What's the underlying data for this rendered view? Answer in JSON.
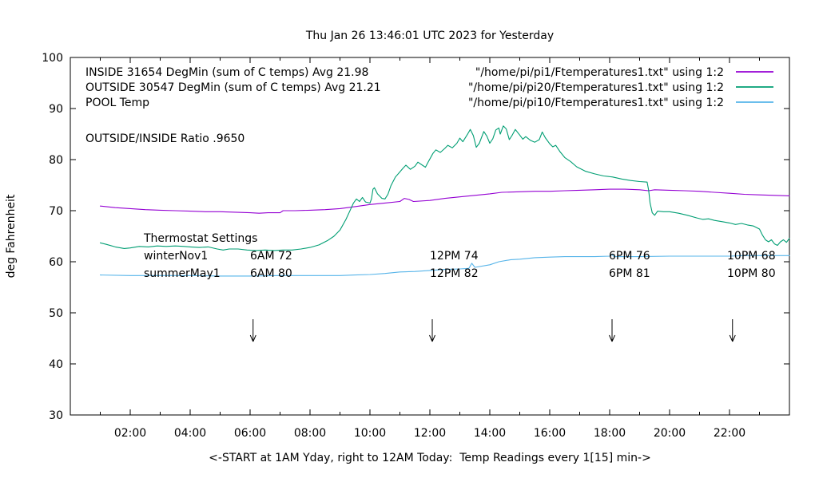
{
  "chart_data": {
    "type": "line",
    "title": "Thu Jan 26 13:46:01 UTC 2023 for Yesterday",
    "xlabel": "<-START at 1AM Yday, right to 12AM Today:  Temp Readings every 1[15] min->",
    "ylabel": "deg Fahrenheit",
    "xlim": [
      0,
      24
    ],
    "ylim": [
      30,
      100
    ],
    "grid": false,
    "legend_position": "inside-top-right-of-plot",
    "x_ticks": [
      {
        "h": 2,
        "label": "02:00"
      },
      {
        "h": 4,
        "label": "04:00"
      },
      {
        "h": 6,
        "label": "06:00"
      },
      {
        "h": 8,
        "label": "08:00"
      },
      {
        "h": 10,
        "label": "10:00"
      },
      {
        "h": 12,
        "label": "12:00"
      },
      {
        "h": 14,
        "label": "14:00"
      },
      {
        "h": 16,
        "label": "16:00"
      },
      {
        "h": 18,
        "label": "18:00"
      },
      {
        "h": 20,
        "label": "20:00"
      },
      {
        "h": 22,
        "label": "22:00"
      }
    ],
    "x_minor_hours": [
      1,
      3,
      5,
      7,
      9,
      11,
      13,
      15,
      17,
      19,
      21,
      23
    ],
    "y_ticks": [
      {
        "v": 30,
        "label": "30"
      },
      {
        "v": 40,
        "label": "40"
      },
      {
        "v": 50,
        "label": "50"
      },
      {
        "v": 60,
        "label": "60"
      },
      {
        "v": 70,
        "label": "70"
      },
      {
        "v": 80,
        "label": "80"
      },
      {
        "v": 90,
        "label": "90"
      },
      {
        "v": 100,
        "label": "100"
      }
    ],
    "series": [
      {
        "name": "INSIDE 31654 DegMin (sum of C temps) Avg 21.98",
        "file": "\"/home/pi/pi1/Ftemperatures1.txt\" using 1:2",
        "color": "#9400d3",
        "points": [
          [
            1,
            70.9
          ],
          [
            1.5,
            70.6
          ],
          [
            2,
            70.4
          ],
          [
            2.5,
            70.2
          ],
          [
            3,
            70.1
          ],
          [
            3.5,
            70
          ],
          [
            4,
            69.9
          ],
          [
            4.5,
            69.8
          ],
          [
            5,
            69.8
          ],
          [
            5.5,
            69.7
          ],
          [
            6,
            69.6
          ],
          [
            6.3,
            69.5
          ],
          [
            6.6,
            69.6
          ],
          [
            7,
            69.6
          ],
          [
            7.1,
            70
          ],
          [
            7.5,
            70
          ],
          [
            8,
            70.1
          ],
          [
            8.5,
            70.2
          ],
          [
            9,
            70.4
          ],
          [
            9.5,
            70.8
          ],
          [
            10,
            71.2
          ],
          [
            10.5,
            71.5
          ],
          [
            11,
            71.8
          ],
          [
            11.15,
            72.4
          ],
          [
            11.3,
            72.2
          ],
          [
            11.45,
            71.8
          ],
          [
            12,
            72
          ],
          [
            12.5,
            72.4
          ],
          [
            13,
            72.7
          ],
          [
            13.5,
            73
          ],
          [
            14,
            73.3
          ],
          [
            14.4,
            73.6
          ],
          [
            15,
            73.7
          ],
          [
            15.5,
            73.8
          ],
          [
            16,
            73.8
          ],
          [
            16.5,
            73.9
          ],
          [
            17,
            74
          ],
          [
            17.5,
            74.1
          ],
          [
            18,
            74.2
          ],
          [
            18.5,
            74.2
          ],
          [
            19,
            74.1
          ],
          [
            19.3,
            73.9
          ],
          [
            19.5,
            74.1
          ],
          [
            20,
            74
          ],
          [
            20.5,
            73.9
          ],
          [
            21,
            73.8
          ],
          [
            21.5,
            73.6
          ],
          [
            22,
            73.4
          ],
          [
            22.5,
            73.2
          ],
          [
            23,
            73.1
          ],
          [
            23.5,
            73
          ],
          [
            24,
            72.9
          ]
        ]
      },
      {
        "name": "OUTSIDE 30547 DegMin (sum of C temps) Avg 21.21",
        "file": "\"/home/pi/pi20/Ftemperatures1.txt\" using 1:2",
        "color": "#009e73",
        "points": [
          [
            1,
            63.7
          ],
          [
            1.2,
            63.4
          ],
          [
            1.5,
            62.9
          ],
          [
            1.8,
            62.6
          ],
          [
            2,
            62.7
          ],
          [
            2.3,
            63
          ],
          [
            2.6,
            62.9
          ],
          [
            2.9,
            63.1
          ],
          [
            3.2,
            63
          ],
          [
            3.5,
            63.1
          ],
          [
            3.8,
            63
          ],
          [
            4,
            62.9
          ],
          [
            4.3,
            62.8
          ],
          [
            4.6,
            62.9
          ],
          [
            4.9,
            62.5
          ],
          [
            5.1,
            62.3
          ],
          [
            5.3,
            62.5
          ],
          [
            5.6,
            62.5
          ],
          [
            5.9,
            62.3
          ],
          [
            6.2,
            62.2
          ],
          [
            6.5,
            62.3
          ],
          [
            6.8,
            62.2
          ],
          [
            7.1,
            62.3
          ],
          [
            7.4,
            62.3
          ],
          [
            7.7,
            62.5
          ],
          [
            8,
            62.8
          ],
          [
            8.3,
            63.3
          ],
          [
            8.6,
            64.2
          ],
          [
            8.8,
            65
          ],
          [
            9,
            66.2
          ],
          [
            9.2,
            68.3
          ],
          [
            9.35,
            70.2
          ],
          [
            9.45,
            71.5
          ],
          [
            9.55,
            72.3
          ],
          [
            9.65,
            71.8
          ],
          [
            9.75,
            72.6
          ],
          [
            9.85,
            71.7
          ],
          [
            10,
            71.5
          ],
          [
            10.05,
            72.3
          ],
          [
            10.1,
            74.2
          ],
          [
            10.15,
            74.5
          ],
          [
            10.25,
            73.3
          ],
          [
            10.4,
            72.4
          ],
          [
            10.5,
            72.3
          ],
          [
            10.6,
            73.2
          ],
          [
            10.7,
            74.9
          ],
          [
            10.85,
            76.6
          ],
          [
            11,
            77.6
          ],
          [
            11.1,
            78.3
          ],
          [
            11.2,
            78.9
          ],
          [
            11.35,
            78.1
          ],
          [
            11.5,
            78.7
          ],
          [
            11.6,
            79.5
          ],
          [
            11.75,
            78.9
          ],
          [
            11.85,
            78.5
          ],
          [
            11.95,
            79.6
          ],
          [
            12.1,
            81.2
          ],
          [
            12.2,
            81.9
          ],
          [
            12.35,
            81.4
          ],
          [
            12.5,
            82.2
          ],
          [
            12.6,
            82.8
          ],
          [
            12.75,
            82.3
          ],
          [
            12.9,
            83.2
          ],
          [
            13,
            84.2
          ],
          [
            13.1,
            83.5
          ],
          [
            13.25,
            84.9
          ],
          [
            13.35,
            85.9
          ],
          [
            13.45,
            84.7
          ],
          [
            13.55,
            82.4
          ],
          [
            13.65,
            83.2
          ],
          [
            13.8,
            85.5
          ],
          [
            13.9,
            84.6
          ],
          [
            14,
            83.2
          ],
          [
            14.1,
            84.1
          ],
          [
            14.2,
            85.8
          ],
          [
            14.3,
            86.2
          ],
          [
            14.35,
            85
          ],
          [
            14.45,
            86.6
          ],
          [
            14.55,
            86
          ],
          [
            14.65,
            83.9
          ],
          [
            14.75,
            84.8
          ],
          [
            14.85,
            85.9
          ],
          [
            15,
            84.8
          ],
          [
            15.1,
            84
          ],
          [
            15.2,
            84.5
          ],
          [
            15.35,
            83.8
          ],
          [
            15.5,
            83.4
          ],
          [
            15.65,
            83.9
          ],
          [
            15.75,
            85.4
          ],
          [
            15.85,
            84.3
          ],
          [
            16,
            83.1
          ],
          [
            16.1,
            82.5
          ],
          [
            16.2,
            82.8
          ],
          [
            16.35,
            81.5
          ],
          [
            16.5,
            80.4
          ],
          [
            16.7,
            79.6
          ],
          [
            16.9,
            78.6
          ],
          [
            17.2,
            77.7
          ],
          [
            17.5,
            77.2
          ],
          [
            17.8,
            76.8
          ],
          [
            18.1,
            76.6
          ],
          [
            18.4,
            76.2
          ],
          [
            18.7,
            75.9
          ],
          [
            19,
            75.7
          ],
          [
            19.25,
            75.6
          ],
          [
            19.3,
            74
          ],
          [
            19.35,
            71.5
          ],
          [
            19.42,
            69.6
          ],
          [
            19.5,
            69.1
          ],
          [
            19.6,
            69.9
          ],
          [
            19.8,
            69.8
          ],
          [
            20,
            69.8
          ],
          [
            20.3,
            69.5
          ],
          [
            20.6,
            69.1
          ],
          [
            20.9,
            68.6
          ],
          [
            21.1,
            68.3
          ],
          [
            21.3,
            68.4
          ],
          [
            21.5,
            68.1
          ],
          [
            21.8,
            67.8
          ],
          [
            22,
            67.6
          ],
          [
            22.2,
            67.3
          ],
          [
            22.4,
            67.5
          ],
          [
            22.6,
            67.2
          ],
          [
            22.8,
            67
          ],
          [
            23,
            66.4
          ],
          [
            23.1,
            65.2
          ],
          [
            23.2,
            64.3
          ],
          [
            23.3,
            63.9
          ],
          [
            23.4,
            64.3
          ],
          [
            23.5,
            63.5
          ],
          [
            23.6,
            63.2
          ],
          [
            23.7,
            63.9
          ],
          [
            23.8,
            64.3
          ],
          [
            23.9,
            63.8
          ],
          [
            24,
            64.6
          ]
        ]
      },
      {
        "name": "POOL Temp",
        "file": "\"/home/pi/pi10/Ftemperatures1.txt\" using 1:2",
        "color": "#56b4e9",
        "points": [
          [
            1,
            57.4
          ],
          [
            2,
            57.3
          ],
          [
            3,
            57.3
          ],
          [
            4,
            57.3
          ],
          [
            5,
            57.2
          ],
          [
            6,
            57.2
          ],
          [
            7,
            57.3
          ],
          [
            8,
            57.3
          ],
          [
            9,
            57.3
          ],
          [
            9.5,
            57.4
          ],
          [
            10,
            57.5
          ],
          [
            10.5,
            57.7
          ],
          [
            11,
            58
          ],
          [
            11.5,
            58.1
          ],
          [
            12,
            58.3
          ],
          [
            12.5,
            58.5
          ],
          [
            13,
            58.6
          ],
          [
            13.3,
            58.7
          ],
          [
            13.4,
            59.7
          ],
          [
            13.5,
            58.9
          ],
          [
            14,
            59.4
          ],
          [
            14.3,
            60
          ],
          [
            14.7,
            60.4
          ],
          [
            15,
            60.5
          ],
          [
            15.5,
            60.8
          ],
          [
            16,
            60.9
          ],
          [
            16.5,
            61
          ],
          [
            17,
            61
          ],
          [
            17.5,
            61
          ],
          [
            18,
            61.1
          ],
          [
            18.07,
            61.4
          ],
          [
            18.15,
            61
          ],
          [
            19,
            61
          ],
          [
            20,
            61.1
          ],
          [
            21,
            61.1
          ],
          [
            22,
            61.1
          ],
          [
            22.5,
            61.2
          ],
          [
            23,
            61.2
          ],
          [
            24,
            61.2
          ]
        ]
      }
    ],
    "annotations": {
      "ratio_label": "OUTSIDE/INSIDE Ratio .9650",
      "thermostat_header": "Thermostat Settings",
      "thermostat_rows": [
        [
          "winterNov1",
          "6AM 72",
          "12PM 74",
          "6PM 76",
          "10PM 68"
        ],
        [
          "summerMay1",
          "6AM 80",
          "12PM 82",
          "6PM 81",
          "10PM 80"
        ]
      ],
      "arrow_hours": [
        6.1,
        12.08,
        18.08,
        22.1
      ]
    }
  }
}
